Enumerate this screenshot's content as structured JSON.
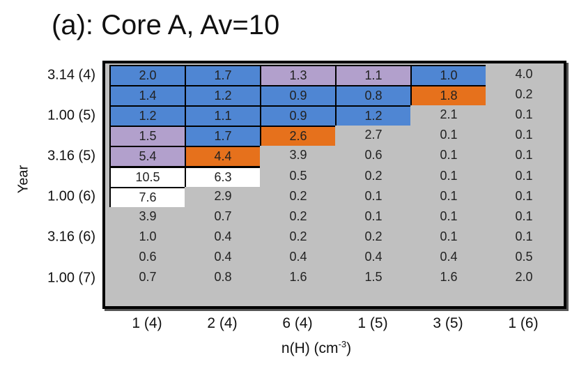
{
  "chart_data": {
    "type": "table",
    "title": "(a): Core A, Av=10",
    "xlabel": "n(H) (cm",
    "xlabel_exponent": "-3",
    "xlabel_suffix": ")",
    "ylabel": "Year",
    "columns": [
      "1 (4)",
      "2 (4)",
      "6 (4)",
      "1 (5)",
      "3 (5)",
      "1 (6)"
    ],
    "y_tick_labels": [
      "3.14 (4)",
      "1.00 (5)",
      "3.16 (5)",
      "1.00 (6)",
      "3.16 (6)",
      "1.00 (7)"
    ],
    "y_tick_row_index": [
      0,
      2,
      4,
      6,
      8,
      10
    ],
    "values": [
      [
        "2.0",
        "1.7",
        "1.3",
        "1.1",
        "1.0",
        "4.0"
      ],
      [
        "1.4",
        "1.2",
        "0.9",
        "0.8",
        "1.8",
        "0.2"
      ],
      [
        "1.2",
        "1.1",
        "0.9",
        "1.2",
        "2.1",
        "0.1"
      ],
      [
        "1.5",
        "1.7",
        "2.6",
        "2.7",
        "0.1",
        "0.1"
      ],
      [
        "5.4",
        "4.4",
        "3.9",
        "0.6",
        "0.1",
        "0.1"
      ],
      [
        "10.5",
        "6.3",
        "0.5",
        "0.2",
        "0.1",
        "0.1"
      ],
      [
        "7.6",
        "2.9",
        "0.2",
        "0.1",
        "0.1",
        "0.1"
      ],
      [
        "3.9",
        "0.7",
        "0.2",
        "0.1",
        "0.1",
        "0.1"
      ],
      [
        "1.0",
        "0.4",
        "0.2",
        "0.2",
        "0.1",
        "0.1"
      ],
      [
        "0.6",
        "0.4",
        "0.4",
        "0.4",
        "0.4",
        "0.5"
      ],
      [
        "0.7",
        "0.8",
        "1.6",
        "1.5",
        "1.6",
        "2.0"
      ]
    ],
    "cell_category": [
      [
        "b",
        "b",
        "p",
        "p",
        "b",
        "g"
      ],
      [
        "b",
        "b",
        "b",
        "b",
        "o",
        "g"
      ],
      [
        "b",
        "b",
        "b",
        "b",
        "g",
        "g"
      ],
      [
        "p",
        "b",
        "o",
        "g",
        "g",
        "g"
      ],
      [
        "p",
        "o",
        "g",
        "g",
        "g",
        "g"
      ],
      [
        "w",
        "w",
        "g",
        "g",
        "g",
        "g"
      ],
      [
        "w",
        "g",
        "g",
        "g",
        "g",
        "g"
      ],
      [
        "g",
        "g",
        "g",
        "g",
        "g",
        "g"
      ],
      [
        "g",
        "g",
        "g",
        "g",
        "g",
        "g"
      ],
      [
        "g",
        "g",
        "g",
        "g",
        "g",
        "g"
      ],
      [
        "g",
        "g",
        "g",
        "g",
        "g",
        "g"
      ]
    ],
    "category_colors": {
      "b": "#4f86d3",
      "p": "#b2a0cc",
      "o": "#e6711c",
      "w": "#ffffff",
      "g": "#c0c0c0"
    }
  }
}
